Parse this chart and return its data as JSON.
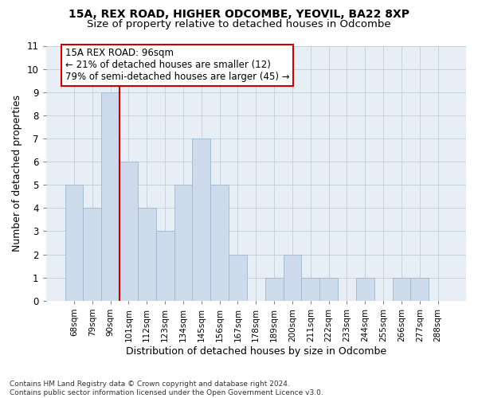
{
  "title1": "15A, REX ROAD, HIGHER ODCOMBE, YEOVIL, BA22 8XP",
  "title2": "Size of property relative to detached houses in Odcombe",
  "xlabel": "Distribution of detached houses by size in Odcombe",
  "ylabel": "Number of detached properties",
  "footer_line1": "Contains HM Land Registry data © Crown copyright and database right 2024.",
  "footer_line2": "Contains public sector information licensed under the Open Government Licence v3.0.",
  "bar_labels": [
    "68sqm",
    "79sqm",
    "90sqm",
    "101sqm",
    "112sqm",
    "123sqm",
    "134sqm",
    "145sqm",
    "156sqm",
    "167sqm",
    "178sqm",
    "189sqm",
    "200sqm",
    "211sqm",
    "222sqm",
    "233sqm",
    "244sqm",
    "255sqm",
    "266sqm",
    "277sqm",
    "288sqm"
  ],
  "bar_values": [
    5,
    4,
    9,
    6,
    4,
    3,
    5,
    7,
    5,
    2,
    0,
    1,
    2,
    1,
    1,
    0,
    1,
    0,
    1,
    1,
    0
  ],
  "bar_color": "#ccdaeb",
  "bar_edge_color": "#9fb8d0",
  "ylim_max": 11,
  "yticks": [
    0,
    1,
    2,
    3,
    4,
    5,
    6,
    7,
    8,
    9,
    10,
    11
  ],
  "ref_line_index": 2,
  "ref_line_color": "#cc0000",
  "annotation_line1": "15A REX ROAD: 96sqm",
  "annotation_line2": "← 21% of detached houses are smaller (12)",
  "annotation_line3": "79% of semi-detached houses are larger (45) →",
  "bg_color": "#e8eef5",
  "grid_color": "#c0cdd8",
  "title_fontsize": 10,
  "subtitle_fontsize": 9.5,
  "ylabel_fontsize": 9,
  "xlabel_fontsize": 9,
  "tick_fontsize": 8.5,
  "xtick_fontsize": 7.5,
  "footer_fontsize": 6.5,
  "ann_fontsize": 8.5
}
